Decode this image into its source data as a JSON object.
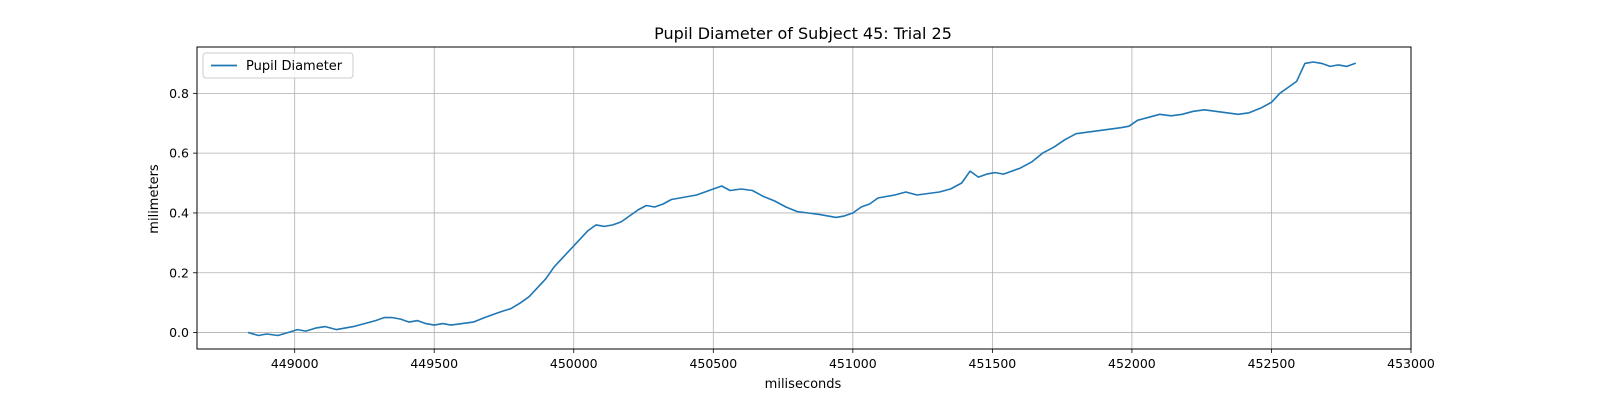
{
  "chart_data": {
    "type": "line",
    "title": "Pupil Diameter of Subject 45: Trial 25",
    "xlabel": "miliseconds",
    "ylabel": "milimeters",
    "xlim": [
      448650,
      453000
    ],
    "ylim": [
      -0.055,
      0.955
    ],
    "xticks": [
      449000,
      449500,
      450000,
      450500,
      451000,
      451500,
      452000,
      452500,
      453000
    ],
    "yticks": [
      0.0,
      0.2,
      0.4,
      0.6,
      0.8
    ],
    "ytick_labels": [
      "0.0",
      "0.2",
      "0.4",
      "0.6",
      "0.8"
    ],
    "grid": true,
    "legend_position": "upper-left",
    "series": [
      {
        "name": "Pupil Diameter",
        "color": "#1f77b4",
        "x": [
          448835,
          448870,
          448900,
          448940,
          448975,
          449010,
          449040,
          449075,
          449110,
          449150,
          449180,
          449210,
          449250,
          449290,
          449320,
          449350,
          449380,
          449410,
          449440,
          449470,
          449500,
          449530,
          449560,
          449600,
          449640,
          449680,
          449710,
          449740,
          449775,
          449810,
          449840,
          449870,
          449900,
          449930,
          449960,
          449990,
          450020,
          450050,
          450080,
          450110,
          450140,
          450170,
          450200,
          450230,
          450260,
          450290,
          450320,
          450350,
          450380,
          450410,
          450440,
          450470,
          450500,
          450530,
          450560,
          450600,
          450640,
          450680,
          450720,
          450760,
          450800,
          450840,
          450880,
          450910,
          450940,
          450970,
          451000,
          451030,
          451060,
          451090,
          451120,
          451150,
          451190,
          451230,
          451270,
          451310,
          451350,
          451390,
          451420,
          451450,
          451480,
          451510,
          451540,
          451570,
          451600,
          451640,
          451680,
          451720,
          451760,
          451800,
          451840,
          451880,
          451920,
          451960,
          451990,
          452020,
          452060,
          452100,
          452140,
          452180,
          452220,
          452260,
          452300,
          452340,
          452380,
          452420,
          452460,
          452500,
          452530,
          452560,
          452590,
          452620,
          452650,
          452680,
          452710,
          452740,
          452770,
          452800
        ],
        "y": [
          0.0,
          -0.01,
          -0.005,
          -0.01,
          0.0,
          0.01,
          0.005,
          0.015,
          0.02,
          0.01,
          0.015,
          0.02,
          0.03,
          0.04,
          0.05,
          0.05,
          0.045,
          0.035,
          0.04,
          0.03,
          0.025,
          0.03,
          0.025,
          0.03,
          0.035,
          0.05,
          0.06,
          0.07,
          0.08,
          0.1,
          0.12,
          0.15,
          0.18,
          0.22,
          0.25,
          0.28,
          0.31,
          0.34,
          0.36,
          0.355,
          0.36,
          0.37,
          0.39,
          0.41,
          0.425,
          0.42,
          0.43,
          0.445,
          0.45,
          0.455,
          0.46,
          0.47,
          0.48,
          0.49,
          0.475,
          0.48,
          0.475,
          0.455,
          0.44,
          0.42,
          0.405,
          0.4,
          0.395,
          0.39,
          0.385,
          0.39,
          0.4,
          0.42,
          0.43,
          0.45,
          0.455,
          0.46,
          0.47,
          0.46,
          0.465,
          0.47,
          0.48,
          0.5,
          0.54,
          0.52,
          0.53,
          0.535,
          0.53,
          0.54,
          0.55,
          0.57,
          0.6,
          0.62,
          0.645,
          0.665,
          0.67,
          0.675,
          0.68,
          0.685,
          0.69,
          0.71,
          0.72,
          0.73,
          0.725,
          0.73,
          0.74,
          0.745,
          0.74,
          0.735,
          0.73,
          0.735,
          0.75,
          0.77,
          0.8,
          0.82,
          0.84,
          0.9,
          0.905,
          0.9,
          0.89,
          0.895,
          0.89,
          0.9
        ]
      }
    ]
  }
}
